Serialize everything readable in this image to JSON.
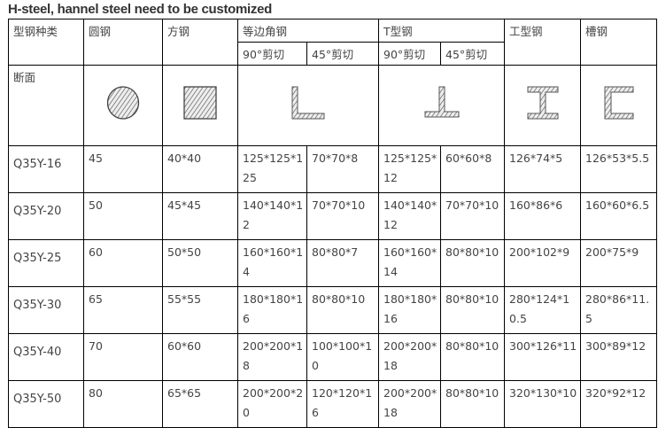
{
  "title": "H-steel, hannel steel need to be customized",
  "header": {
    "type": "型钢种类",
    "round": "圆钢",
    "square": "方钢",
    "angle": "等边角钢",
    "tee": "T型钢",
    "ibeam": "工型钢",
    "channel": "槽钢",
    "cut90": "90°剪切",
    "cut45": "45°剪切"
  },
  "section_label": "断面",
  "section_icons": [
    "circle-section-icon",
    "square-section-icon",
    "angle-section-icon",
    "tee-section-icon",
    "ibeam-section-icon",
    "channel-section-icon"
  ],
  "rows": [
    [
      "Q35Y-16",
      "45",
      "40*40",
      "125*125*125",
      "70*70*8",
      "125*125*12",
      "60*60*8",
      "126*74*5",
      "126*53*5.5"
    ],
    [
      "Q35Y-20",
      "50",
      "45*45",
      "140*140*12",
      "70*70*10",
      "140*140*12",
      "70*70*10",
      "160*86*6",
      "160*60*6.5"
    ],
    [
      "Q35Y-25",
      "60",
      "50*50",
      "160*160*14",
      "80*80*7",
      "160*160*14",
      "80*80*10",
      "200*102*9",
      "200*75*9"
    ],
    [
      "Q35Y-30",
      "65",
      "55*55",
      "180*180*16",
      "80*80*10",
      "180*180*16",
      "80*80*10",
      "280*124*10.5",
      "280*86*11.5"
    ],
    [
      "Q35Y-40",
      "70",
      "60*60",
      "200*200*18",
      "100*100*10",
      "200*200*18",
      "80*80*10",
      "300*126*11",
      "300*89*12"
    ],
    [
      "Q35Y-50",
      "80",
      "65*65",
      "200*200*20",
      "120*120*16",
      "200*200*18",
      "80*80*10",
      "320*130*10",
      "320*92*12"
    ]
  ]
}
